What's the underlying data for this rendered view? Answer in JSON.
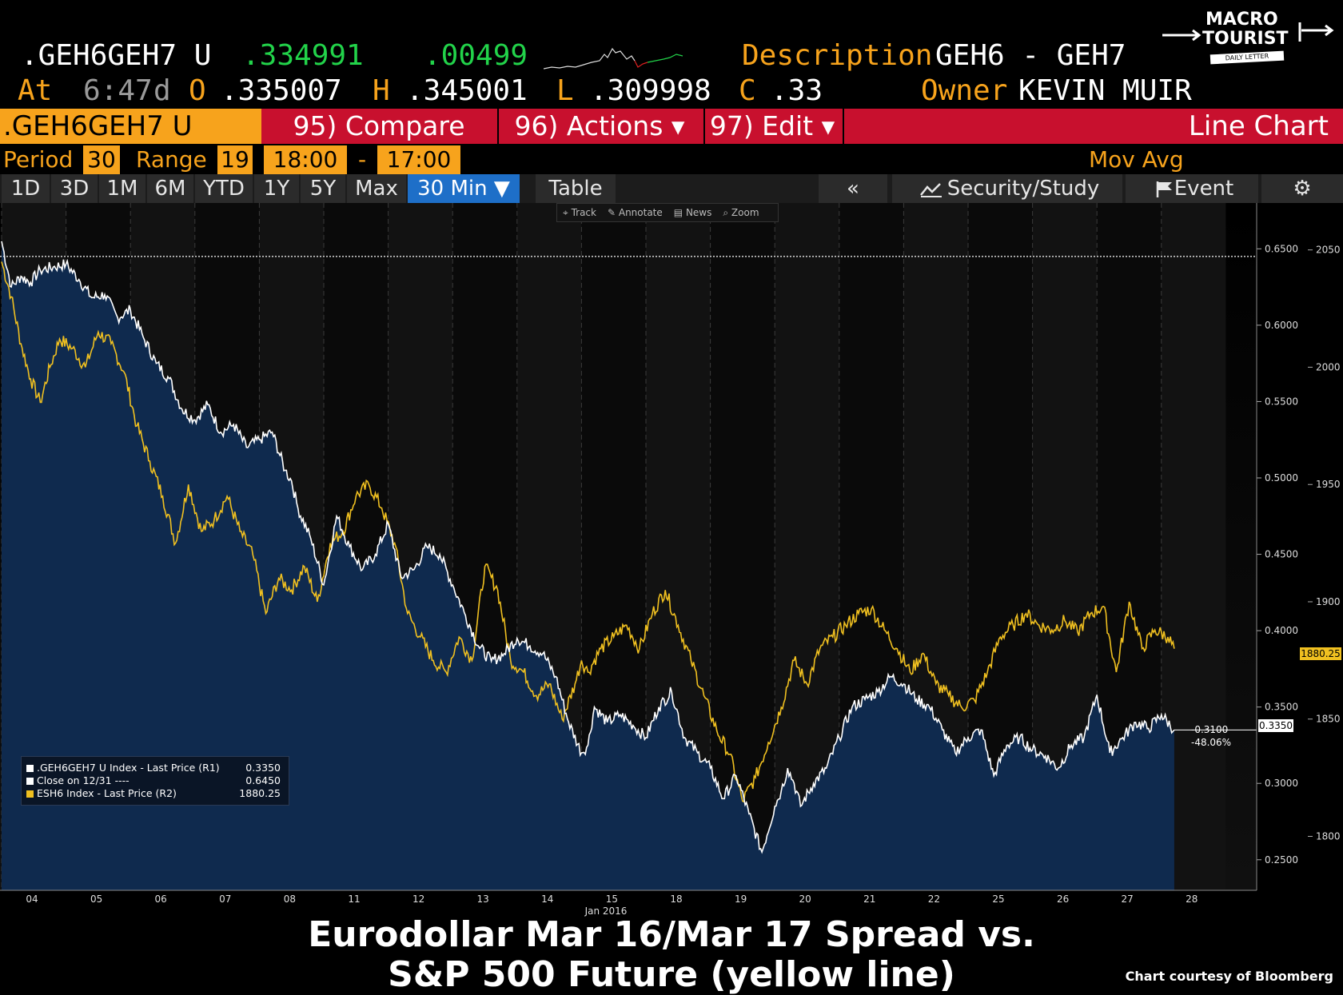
{
  "quote": {
    "ticker": ".GEH6GEH7 U",
    "last": ".334991",
    "change": ".00499",
    "desc_label": "Description",
    "desc_value": "GEH6 - GEH7",
    "at_label": "At",
    "time": "6:47",
    "d_label": "d",
    "open_label": "O",
    "open": ".335007",
    "high_label": "H",
    "high": ".345001",
    "low_label": "L",
    "low": ".309998",
    "close_label": "C",
    "close": ".33",
    "owner_label": "Owner",
    "owner": "KEVIN MUIR"
  },
  "logo": {
    "line1": "MACRO",
    "line2": "TOURIST",
    "line3": "DAILY LETTER"
  },
  "toolbar": {
    "index": ".GEH6GEH7 U Index",
    "compare": "95) Compare",
    "actions": "96) Actions ▾",
    "edit": "97) Edit ▾",
    "chart_type": "Line Chart"
  },
  "settings": {
    "period_label": "Period",
    "period": "30",
    "range_label": "Range",
    "range": "19",
    "start": "18:00",
    "dash": "-",
    "end": "17:00",
    "movavg_label": "Mov Avg"
  },
  "tabs": [
    "1D",
    "3D",
    "1M",
    "6M",
    "YTD",
    "1Y",
    "5Y",
    "Max",
    "30 Min ▼"
  ],
  "tabs_right": {
    "table": "Table",
    "back": "«",
    "study": "Security/Study",
    "event": "Event"
  },
  "chart_toolbar": [
    "Track",
    "Annotate",
    "News",
    "Zoom"
  ],
  "legend": [
    {
      "label": ".GEH6GEH7 U Index - Last Price (R1)",
      "value": "0.3350",
      "color": "#ffffff"
    },
    {
      "label": "Close on 12/31 ----",
      "value": "0.6450",
      "color": "#ffffff"
    },
    {
      "label": "ESH6 Index - Last Price (R2)",
      "value": "1880.25",
      "color": "#f0c020"
    }
  ],
  "markers": {
    "last_spread": "0.3350",
    "last_spx": "1880.25",
    "chg": "-0.3100",
    "chg_pct": "-48.06%"
  },
  "caption": {
    "line1": "Eurodollar Mar 16/Mar 17 Spread vs.",
    "line2": "S&P 500 Future (yellow line)",
    "credit": "Chart courtesy of Bloomberg"
  },
  "chart_data": {
    "type": "line",
    "x_tick_labels": [
      "04",
      "05",
      "06",
      "07",
      "08",
      "11",
      "12",
      "13",
      "14",
      "15",
      "18",
      "19",
      "20",
      "21",
      "22",
      "25",
      "26",
      "27",
      "28"
    ],
    "x_sublabel": "Jan 2016",
    "y1_ticks": [
      "0.6500",
      "0.6000",
      "0.5500",
      "0.5000",
      "0.4500",
      "0.4000",
      "0.3500",
      "0.3000",
      "0.2500"
    ],
    "y2_ticks": [
      "2050",
      "2000",
      "1950",
      "1900",
      "1850",
      "1800"
    ],
    "y1lim": [
      0.23,
      0.68
    ],
    "y2lim": [
      1777,
      2070
    ],
    "reference_close": 0.645,
    "series": [
      {
        "name": ".GEH6GEH7 U Index - Last Price (R1)",
        "axis": "R1",
        "color": "#ffffff",
        "x": [
          0,
          0.15,
          0.3,
          0.45,
          0.6,
          0.8,
          1.0,
          1.2,
          1.4,
          1.6,
          1.8,
          2.0,
          2.2,
          2.4,
          2.6,
          2.8,
          3.0,
          3.2,
          3.4,
          3.6,
          3.8,
          4.0,
          4.2,
          4.4,
          4.5,
          4.6,
          4.8,
          5.0,
          5.2,
          5.4,
          5.6,
          5.8,
          6.0,
          6.2,
          6.4,
          6.6,
          6.8,
          7.0,
          7.2,
          7.4,
          7.6,
          7.8,
          8.0,
          8.2,
          8.4,
          8.6,
          8.8,
          9.0,
          9.1,
          9.2,
          9.4,
          9.6,
          9.8,
          10.0,
          10.2,
          10.4,
          10.6,
          10.8,
          11.0,
          11.2,
          11.4,
          11.6,
          11.8,
          12.0,
          12.1,
          12.2,
          12.3,
          12.4,
          12.6,
          12.8,
          13.0,
          13.2,
          13.4,
          13.6,
          13.8,
          14.0,
          14.2,
          14.4,
          14.6,
          14.8,
          15.0,
          15.2,
          15.4,
          15.6,
          15.8,
          16.0,
          16.2,
          16.4,
          16.6,
          16.8,
          17.0,
          17.2,
          17.4,
          17.6,
          17.8,
          18.0,
          18.2
        ],
        "values": [
          0.655,
          0.625,
          0.632,
          0.628,
          0.636,
          0.638,
          0.64,
          0.63,
          0.618,
          0.62,
          0.605,
          0.61,
          0.592,
          0.575,
          0.565,
          0.545,
          0.538,
          0.548,
          0.53,
          0.535,
          0.52,
          0.525,
          0.53,
          0.505,
          0.498,
          0.48,
          0.46,
          0.43,
          0.475,
          0.455,
          0.44,
          0.45,
          0.47,
          0.435,
          0.44,
          0.455,
          0.45,
          0.43,
          0.41,
          0.39,
          0.38,
          0.385,
          0.395,
          0.39,
          0.385,
          0.37,
          0.34,
          0.32,
          0.325,
          0.35,
          0.34,
          0.345,
          0.338,
          0.33,
          0.35,
          0.36,
          0.33,
          0.32,
          0.31,
          0.29,
          0.305,
          0.28,
          0.255,
          0.285,
          0.295,
          0.31,
          0.3,
          0.285,
          0.3,
          0.31,
          0.33,
          0.35,
          0.355,
          0.36,
          0.37,
          0.365,
          0.355,
          0.35,
          0.335,
          0.32,
          0.33,
          0.335,
          0.305,
          0.325,
          0.33,
          0.322,
          0.318,
          0.31,
          0.325,
          0.33,
          0.358,
          0.32,
          0.33,
          0.34,
          0.336,
          0.345,
          0.335
        ]
      },
      {
        "name": "ESH6 Index - Last Price (R2)",
        "axis": "R2",
        "color": "#f0c020",
        "x": [
          0,
          0.15,
          0.3,
          0.45,
          0.6,
          0.75,
          0.9,
          1.1,
          1.3,
          1.5,
          1.7,
          1.9,
          2.1,
          2.3,
          2.5,
          2.7,
          2.9,
          3.1,
          3.3,
          3.5,
          3.7,
          3.9,
          4.1,
          4.3,
          4.5,
          4.7,
          4.9,
          5.1,
          5.3,
          5.5,
          5.7,
          5.9,
          6.1,
          6.3,
          6.5,
          6.7,
          6.9,
          7.1,
          7.3,
          7.5,
          7.7,
          7.9,
          8.1,
          8.3,
          8.5,
          8.7,
          8.9,
          9.0,
          9.1,
          9.3,
          9.5,
          9.7,
          9.9,
          10.1,
          10.3,
          10.5,
          10.7,
          10.9,
          11.1,
          11.3,
          11.5,
          11.7,
          11.9,
          12.1,
          12.3,
          12.5,
          12.7,
          12.9,
          13.1,
          13.3,
          13.5,
          13.7,
          13.9,
          14.1,
          14.3,
          14.5,
          14.7,
          14.9,
          15.1,
          15.3,
          15.5,
          15.7,
          15.9,
          16.1,
          16.3,
          16.5,
          16.7,
          16.9,
          17.1,
          17.3,
          17.5,
          17.7,
          17.9,
          18.1,
          18.2
        ],
        "values": [
          2045,
          2030,
          2010,
          1995,
          1985,
          2000,
          2012,
          2008,
          2000,
          2015,
          2010,
          1998,
          1975,
          1960,
          1945,
          1925,
          1950,
          1930,
          1935,
          1945,
          1930,
          1920,
          1895,
          1910,
          1905,
          1915,
          1900,
          1925,
          1930,
          1945,
          1950,
          1940,
          1925,
          1895,
          1885,
          1875,
          1870,
          1885,
          1875,
          1915,
          1905,
          1875,
          1870,
          1860,
          1865,
          1850,
          1865,
          1875,
          1870,
          1880,
          1885,
          1890,
          1880,
          1895,
          1905,
          1890,
          1875,
          1860,
          1845,
          1835,
          1815,
          1825,
          1840,
          1855,
          1875,
          1865,
          1880,
          1885,
          1890,
          1895,
          1897,
          1888,
          1880,
          1870,
          1878,
          1865,
          1860,
          1855,
          1858,
          1870,
          1885,
          1890,
          1895,
          1890,
          1888,
          1892,
          1887,
          1895,
          1898,
          1870,
          1900,
          1880,
          1888,
          1885,
          1880
        ]
      }
    ]
  }
}
